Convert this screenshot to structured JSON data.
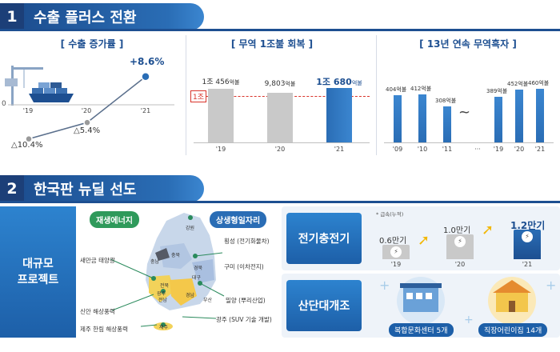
{
  "section1": {
    "number": "1",
    "title": "수출 플러스 전환",
    "panels": {
      "growth": {
        "title": "[ 수출 증가률 ]",
        "zero_label": "0",
        "points": [
          {
            "year": "'19",
            "label": "△10.4%",
            "value": -10.4
          },
          {
            "year": "'20",
            "label": "△5.4%",
            "value": -5.4
          },
          {
            "year": "'21",
            "label": "+8.6%",
            "value": 8.6
          }
        ]
      },
      "trade": {
        "title": "[ 무역 1조불 회복 ]",
        "ref_label": "1조",
        "bars": [
          {
            "year": "'19",
            "main": "1조 456",
            "unit": "억불",
            "value": 10456
          },
          {
            "year": "'20",
            "main": "9,803",
            "unit": "억불",
            "value": 9803
          },
          {
            "year": "'21",
            "main": "1조 680",
            "unit": "억불",
            "value": 10680
          }
        ]
      },
      "surplus": {
        "title": "[ 13년 연속 무역흑자 ]",
        "tilde": "~",
        "bars": [
          {
            "year": "'09",
            "label": "404억불",
            "value": 404
          },
          {
            "year": "'10",
            "label": "412억불",
            "value": 412
          },
          {
            "year": "'11",
            "label": "308억불",
            "value": 308
          },
          {
            "year": "···",
            "label": "",
            "value": null
          },
          {
            "year": "'19",
            "label": "389억불",
            "value": 389
          },
          {
            "year": "'20",
            "label": "452억불",
            "value": 452
          },
          {
            "year": "'21",
            "label": "460억불",
            "value": 460
          }
        ]
      }
    }
  },
  "section2": {
    "number": "2",
    "title": "한국판 뉴딜 선도",
    "projects": {
      "label_line1": "대규모",
      "label_line2": "프로젝트",
      "tag_energy": "재생에너지",
      "tag_jobs": "상생형일자리",
      "regions": [
        "강원",
        "충북",
        "충남",
        "경북",
        "대구",
        "전북",
        "경남",
        "전남",
        "광주",
        "부산",
        "제주"
      ],
      "left_items": [
        "새만금 태양광",
        "신안 해상풍력",
        "제주 한림 해상풍력"
      ],
      "right_items": [
        "횡성 (전기화물차)",
        "구미 (이차전지)",
        "밀양 (뿌리산업)",
        "광주 (SUV 기술 개발)"
      ]
    },
    "ev": {
      "title": "전기충전기",
      "note": "* 급속(누적)",
      "bars": [
        {
          "year": "'19",
          "label": "0.6만기",
          "value": 0.6
        },
        {
          "year": "'20",
          "label": "1.0만기",
          "value": 1.0
        },
        {
          "year": "'21",
          "label": "1.2만기",
          "value": 1.2
        }
      ]
    },
    "industrial": {
      "title": "산단대개조",
      "badge1": "복합문화센터 5개",
      "badge2": "직장어린이집 14개"
    }
  },
  "colors": {
    "navy": "#1c3f78",
    "blue": "#2a6db5",
    "grey_bar": "#c9c9c9",
    "red_ref": "#d9342b"
  }
}
